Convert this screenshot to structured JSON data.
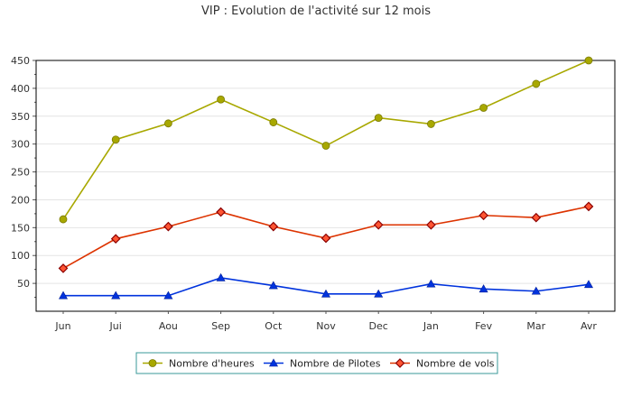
{
  "chart_data": {
    "type": "line",
    "title": "VIP : Evolution de l'activité sur 12 mois",
    "categories": [
      "Jun",
      "Jui",
      "Aou",
      "Sep",
      "Oct",
      "Nov",
      "Dec",
      "Jan",
      "Fev",
      "Mar",
      "Avr"
    ],
    "ylim": [
      0,
      450
    ],
    "yticks": [
      50,
      100,
      150,
      200,
      250,
      300,
      350,
      400,
      450
    ],
    "grid": true,
    "legend_position": "bottom",
    "series": [
      {
        "name": "Nombre d'heures",
        "color": "#a8a800",
        "marker": "circle",
        "values": [
          165,
          308,
          337,
          380,
          339,
          297,
          347,
          336,
          365,
          408,
          450
        ]
      },
      {
        "name": "Nombre de Pilotes",
        "color": "#0033dd",
        "marker": "triangle",
        "values": [
          28,
          28,
          28,
          60,
          46,
          31,
          31,
          49,
          40,
          36,
          48
        ]
      },
      {
        "name": "Nombre de vols",
        "color": "#dd3300",
        "marker": "diamond",
        "values": [
          77,
          130,
          152,
          178,
          152,
          131,
          155,
          155,
          172,
          168,
          188
        ]
      }
    ]
  }
}
